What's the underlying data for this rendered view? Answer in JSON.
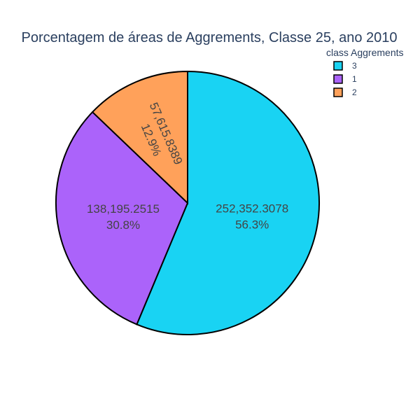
{
  "chart_data": {
    "type": "pie",
    "title": "Porcentagem de áreas de Aggrements, Classe 25, ano 2010",
    "legend": {
      "title": "class Aggrements",
      "placement": "top-right"
    },
    "slices": [
      {
        "label": "3",
        "value": 252352.3078,
        "value_text": "252,352.3078",
        "percent_text": "56.3%",
        "color": "#19d3f3"
      },
      {
        "label": "1",
        "value": 138195.2515,
        "value_text": "138,195.2515",
        "percent_text": "30.8%",
        "color": "#ab63fa"
      },
      {
        "label": "2",
        "value": 57615.8389,
        "value_text": "57,615.8389",
        "percent_text": "12.9%",
        "color": "#ffa15a"
      }
    ],
    "sort": "descending",
    "direction": "clockwise",
    "start_angle_deg": 90
  }
}
